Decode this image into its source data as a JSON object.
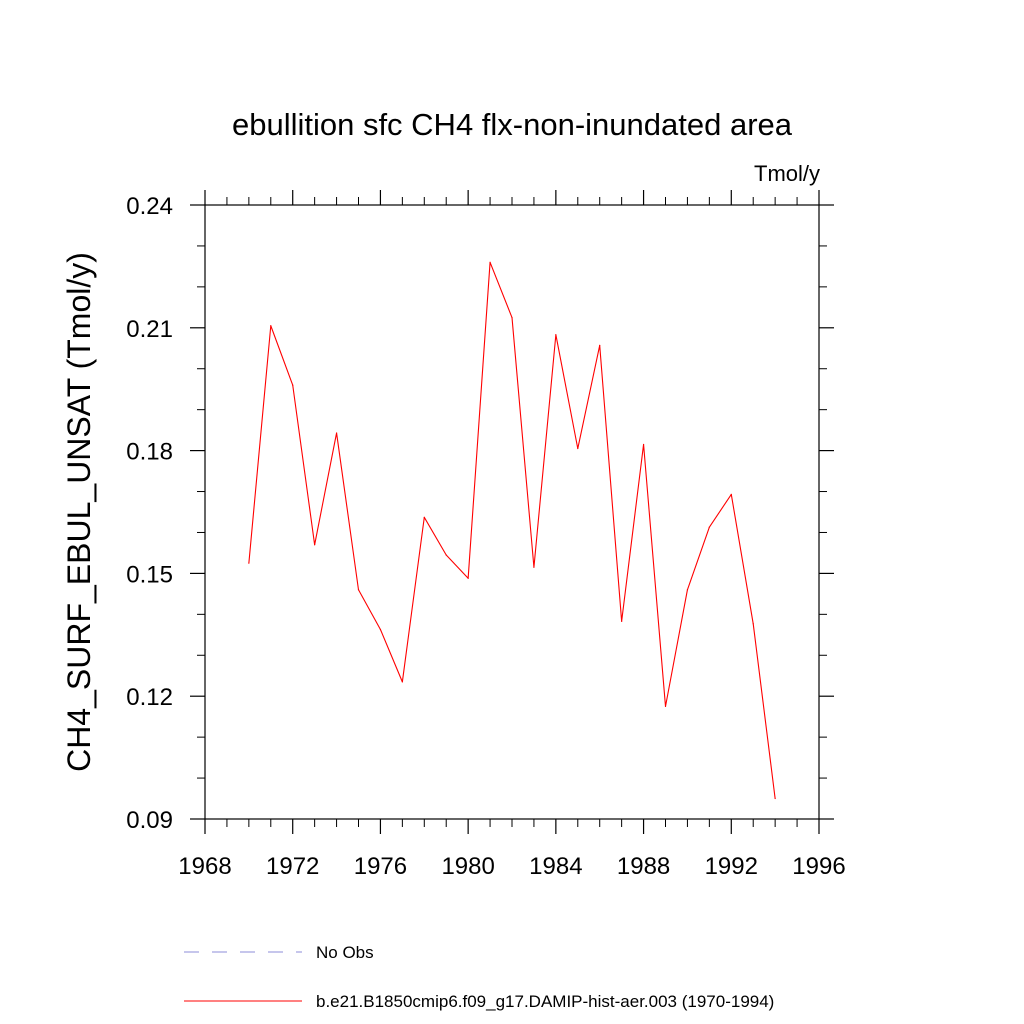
{
  "chart_data": {
    "type": "line",
    "title": "ebullition sfc CH4 flx-non-inundated area",
    "units_label": "Tmol/y",
    "ylabel": "CH4_SURF_EBUL_UNSAT  (Tmol/y)",
    "xlabel": "",
    "xlim": [
      1968,
      1996
    ],
    "ylim": [
      0.09,
      0.24
    ],
    "x_ticks": [
      1968,
      1972,
      1976,
      1980,
      1984,
      1988,
      1992,
      1996
    ],
    "y_ticks": [
      0.09,
      0.12,
      0.15,
      0.18,
      0.21,
      0.24
    ],
    "y_tick_labels": [
      "0.09",
      "0.12",
      "0.15",
      "0.18",
      "0.21",
      "0.24"
    ],
    "x_minor_step": 1,
    "y_minor_step": 0.01,
    "series": [
      {
        "name": "b.e21.B1850cmip6.f09_g17.DAMIP-hist-aer.003 (1970-1994)",
        "color": "#ff0000",
        "x": [
          1970,
          1971,
          1972,
          1973,
          1974,
          1975,
          1976,
          1977,
          1978,
          1979,
          1980,
          1981,
          1982,
          1983,
          1984,
          1985,
          1986,
          1987,
          1988,
          1989,
          1990,
          1991,
          1992,
          1993,
          1994
        ],
        "y": [
          0.1525,
          0.2105,
          0.196,
          0.157,
          0.1843,
          0.146,
          0.1363,
          0.1235,
          0.1637,
          0.1545,
          0.1488,
          0.226,
          0.2125,
          0.1515,
          0.2083,
          0.1805,
          0.2057,
          0.1383,
          0.1815,
          0.1175,
          0.146,
          0.1613,
          0.1693,
          0.1377,
          0.095
        ]
      }
    ],
    "legend": [
      {
        "label": "No Obs",
        "color": "#8c8cd8",
        "style": "dashed"
      },
      {
        "label": "b.e21.B1850cmip6.f09_g17.DAMIP-hist-aer.003 (1970-1994)",
        "color": "#ff0000",
        "style": "solid"
      }
    ],
    "legend_position": "bottom",
    "grid": false
  }
}
